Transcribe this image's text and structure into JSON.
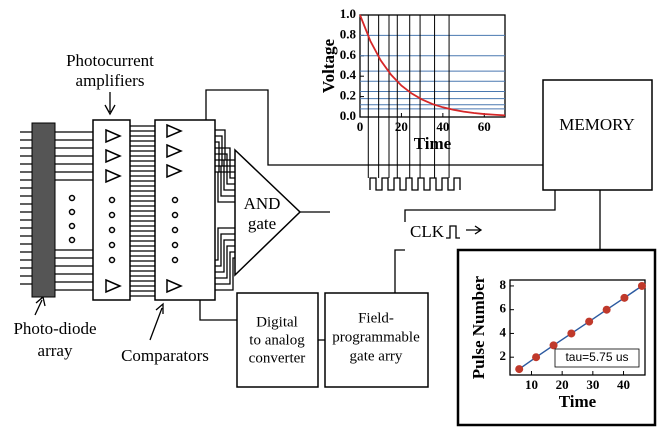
{
  "labels": {
    "amplifiers": [
      "Photocurrent",
      "amplifiers"
    ],
    "comparators": "Comparators",
    "photodiode": [
      "Photo-diode",
      "array"
    ]
  },
  "blocks": {
    "and_gate": [
      "AND",
      "gate"
    ],
    "dac": [
      "Digital",
      "to analog",
      "converter"
    ],
    "fpga": [
      "Field-",
      "programmable",
      "gate arry"
    ],
    "memory": "MEMORY",
    "clk": "CLK"
  },
  "voltage_chart": {
    "type": "line",
    "y_label": "Voltage",
    "x_label": "Time",
    "xlim": [
      0,
      70
    ],
    "ylim": [
      0,
      1
    ],
    "xticks": [
      0,
      20,
      40,
      60
    ],
    "yticks": [
      {
        "value": 0,
        "label": "0.0"
      },
      {
        "value": 0.2,
        "label": "0.2"
      },
      {
        "value": 0.4,
        "label": "0.4"
      },
      {
        "value": 0.6,
        "label": "0.6"
      },
      {
        "value": 0.8,
        "label": "0.8"
      },
      {
        "value": 1,
        "label": "1.0"
      }
    ],
    "x": [
      0,
      5,
      10,
      15,
      20,
      25,
      30,
      35,
      40,
      45,
      50,
      55,
      60,
      65,
      70
    ],
    "values": [
      1,
      0.745,
      0.555,
      0.414,
      0.308,
      0.23,
      0.171,
      0.127,
      0.095,
      0.071,
      0.053,
      0.039,
      0.029,
      0.022,
      0.016
    ],
    "color": "#d62728",
    "thresholds": [
      0.8,
      0.6,
      0.45,
      0.35,
      0.25,
      0.18,
      0.12,
      0.08
    ],
    "threshold_color": "#4a78b0",
    "crossing_times": [
      4,
      9,
      14,
      18,
      24,
      29,
      36,
      43
    ]
  },
  "pulse_chart": {
    "type": "scatter",
    "y_label": "Pulse Number",
    "x_label": "Time",
    "annotation": "tau=5.75 us",
    "xlim": [
      3,
      47
    ],
    "ylim": [
      0.5,
      8.5
    ],
    "xticks": [
      10,
      20,
      30,
      40
    ],
    "yticks": [
      2,
      4,
      6,
      8
    ],
    "x": [
      6,
      11.5,
      17.2,
      23,
      28.8,
      34.5,
      40.3,
      46
    ],
    "values": [
      1,
      2,
      3,
      4,
      5,
      6,
      7,
      8
    ],
    "color": "#c0392b",
    "fit_color": "#2c5aa0"
  }
}
